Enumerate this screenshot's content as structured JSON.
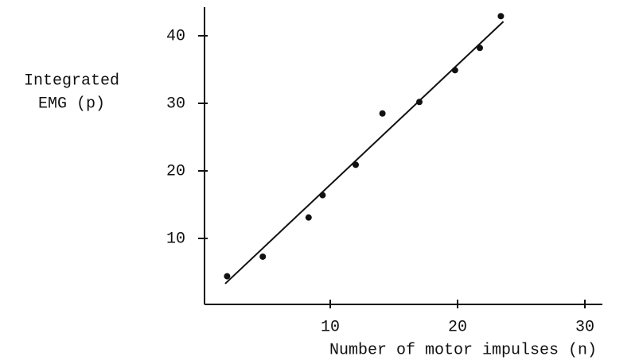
{
  "chart_data": {
    "type": "scatter",
    "ylabel": [
      "Integrated",
      "EMG (p)"
    ],
    "xlabel": "Number of motor impulses (n)",
    "x": [
      1.9,
      4.7,
      8.3,
      9.4,
      12,
      14.1,
      17,
      19.8,
      21.75,
      23.4
    ],
    "values": [
      4.4,
      7.3,
      13.1,
      16.4,
      20.9,
      28.5,
      30.2,
      34.9,
      38.2,
      42.9
    ],
    "color": "#111111",
    "fit_line": {
      "x": [
        1.75,
        23.6
      ],
      "y": [
        3.3,
        42.1
      ]
    },
    "xlim": [
      0,
      31.5
    ],
    "xticks": [
      10,
      20,
      30
    ],
    "ylim": [
      0,
      44
    ],
    "yticks": [
      10,
      20,
      30,
      40
    ],
    "grid": false
  }
}
